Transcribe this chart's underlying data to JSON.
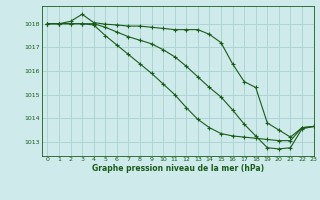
{
  "title": "Graphe pression niveau de la mer (hPa)",
  "background_color": "#ceeaea",
  "grid_color": "#aed4d4",
  "line_color": "#1a5c1a",
  "xlim": [
    -0.5,
    23
  ],
  "ylim": [
    1012.4,
    1018.75
  ],
  "yticks": [
    1013,
    1014,
    1015,
    1016,
    1017,
    1018
  ],
  "xticks": [
    0,
    1,
    2,
    3,
    4,
    5,
    6,
    7,
    8,
    9,
    10,
    11,
    12,
    13,
    14,
    15,
    16,
    17,
    18,
    19,
    20,
    21,
    22,
    23
  ],
  "series1_x": [
    0,
    1,
    2,
    3,
    4,
    5,
    6,
    7,
    8,
    9,
    10,
    11,
    12,
    13,
    14,
    15,
    16,
    17,
    18,
    19,
    20,
    21,
    22,
    23
  ],
  "series1_y": [
    1018.0,
    1018.0,
    1018.1,
    1018.4,
    1018.05,
    1017.98,
    1017.95,
    1017.9,
    1017.9,
    1017.85,
    1017.8,
    1017.75,
    1017.75,
    1017.75,
    1017.55,
    1017.2,
    1016.3,
    1015.55,
    1015.3,
    1013.8,
    1013.5,
    1013.2,
    1013.6,
    1013.65
  ],
  "series2_x": [
    0,
    1,
    2,
    3,
    4,
    5,
    6,
    7,
    8,
    9,
    10,
    11,
    12,
    13,
    14,
    15,
    16,
    17,
    18,
    19,
    20,
    21,
    22,
    23
  ],
  "series2_y": [
    1018.0,
    1018.0,
    1018.0,
    1018.0,
    1018.0,
    1017.85,
    1017.65,
    1017.45,
    1017.3,
    1017.15,
    1016.9,
    1016.6,
    1016.2,
    1015.75,
    1015.3,
    1014.9,
    1014.35,
    1013.75,
    1013.25,
    1012.75,
    1012.7,
    1012.75,
    1013.55,
    1013.65
  ],
  "series3_x": [
    0,
    1,
    2,
    3,
    4,
    5,
    6,
    7,
    8,
    9,
    10,
    11,
    12,
    13,
    14,
    15,
    16,
    17,
    18,
    19,
    20,
    21,
    22,
    23
  ],
  "series3_y": [
    1018.0,
    1018.0,
    1018.0,
    1018.0,
    1017.95,
    1017.5,
    1017.1,
    1016.7,
    1016.3,
    1015.9,
    1015.45,
    1015.0,
    1014.45,
    1013.95,
    1013.6,
    1013.35,
    1013.25,
    1013.2,
    1013.15,
    1013.1,
    1013.05,
    1013.05,
    1013.6,
    1013.65
  ]
}
